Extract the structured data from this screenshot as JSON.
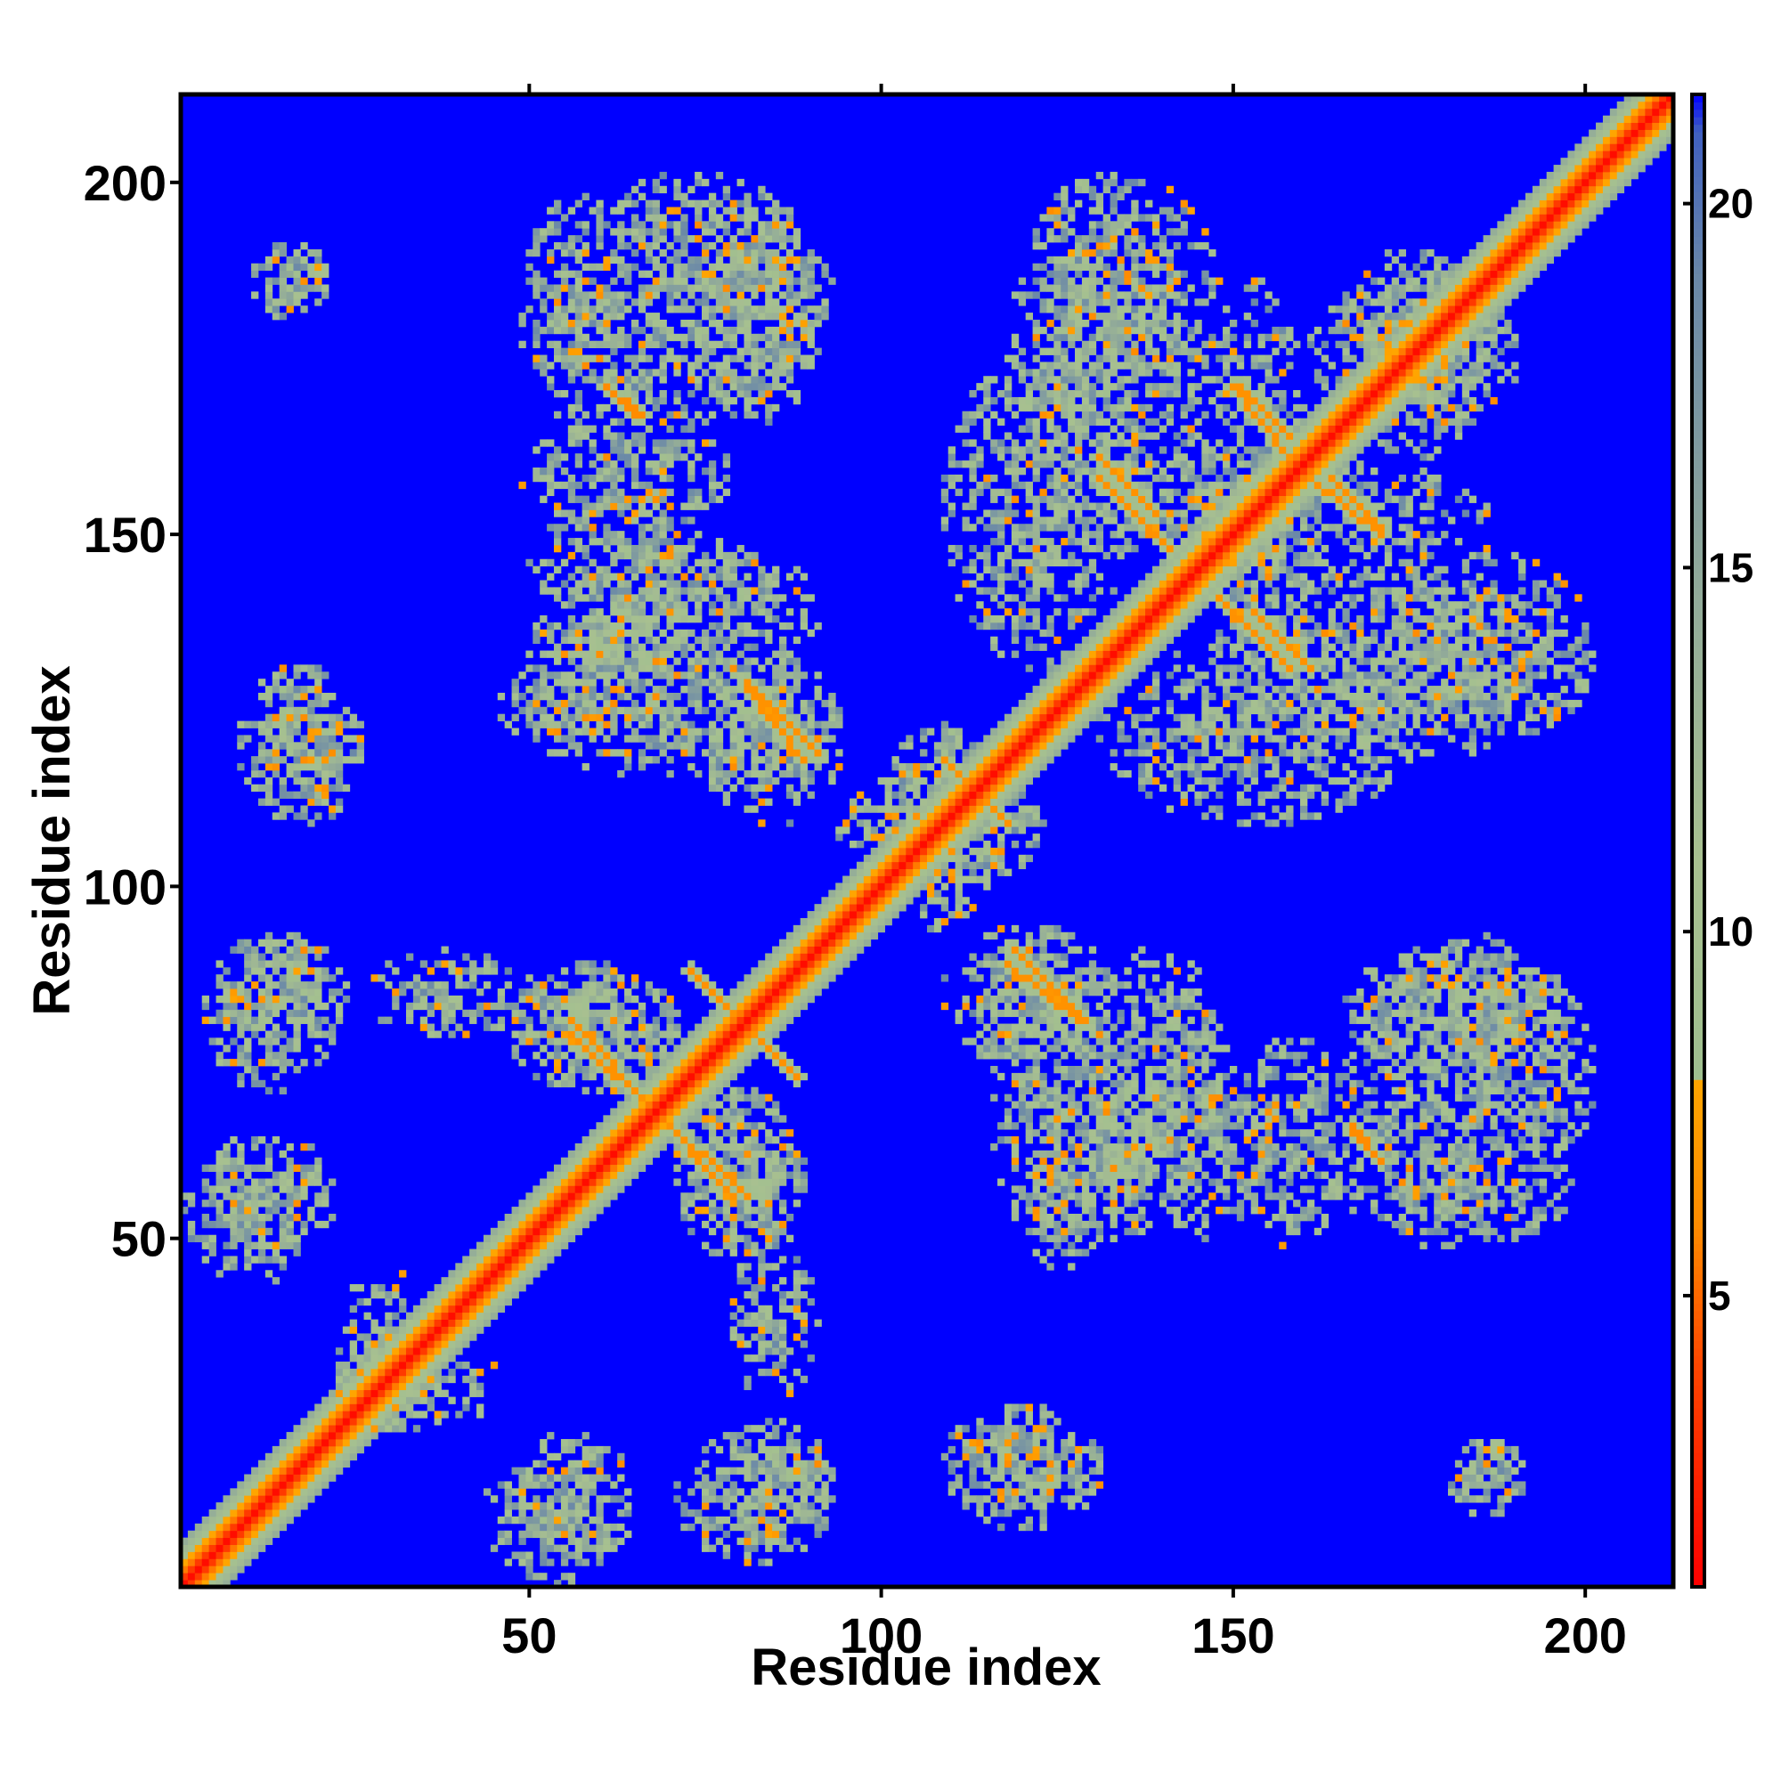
{
  "chart_data": {
    "type": "heatmap",
    "title": "",
    "xlabel": "Residue index",
    "ylabel": "Residue index",
    "xlim": [
      1,
      212
    ],
    "ylim": [
      1,
      212
    ],
    "xticks": [
      "50",
      "100",
      "150",
      "200"
    ],
    "yticks": [
      "50",
      "100",
      "150",
      "200"
    ],
    "colorbar": {
      "range": [
        1,
        21.5
      ],
      "ticks": [
        "5",
        "10",
        "15",
        "20"
      ],
      "stops": [
        {
          "value": 1,
          "color": "#ff0000"
        },
        {
          "value": 4,
          "color": "#ff4500"
        },
        {
          "value": 6,
          "color": "#ff8c00"
        },
        {
          "value": 8,
          "color": "#ffa500"
        },
        {
          "value": 8.01,
          "color": "#9fbf8f"
        },
        {
          "value": 11,
          "color": "#a8c090"
        },
        {
          "value": 15,
          "color": "#8fa89a"
        },
        {
          "value": 19,
          "color": "#6a88a8"
        },
        {
          "value": 21,
          "color": "#4060c0"
        },
        {
          "value": 21.5,
          "color": "#0000ff"
        }
      ]
    },
    "background_value": 21.5,
    "diagonal_band": [
      {
        "offset": 0,
        "value": 1.5
      },
      {
        "offset": 1,
        "value": 3.5
      },
      {
        "offset": 2,
        "value": 5.5
      },
      {
        "offset": 3,
        "value": 8
      },
      {
        "offset": 4,
        "value": 10
      },
      {
        "offset": 5,
        "value": 12
      },
      {
        "offset": 6,
        "value": 14
      }
    ],
    "contact_regions": [
      {
        "x": [
          3,
          22
        ],
        "y": [
          48,
          63
        ]
      },
      {
        "x": [
          4,
          23
        ],
        "y": [
          77,
          92
        ]
      },
      {
        "x": [
          10,
          25
        ],
        "y": [
          108,
          130
        ]
      },
      {
        "x": [
          10,
          20
        ],
        "y": [
          183,
          190
        ]
      },
      {
        "x": [
          22,
          35
        ],
        "y": [
          20,
          45
        ]
      },
      {
        "x": [
          43,
          63
        ],
        "y": [
          0,
          20
        ]
      },
      {
        "x": [
          70,
          92
        ],
        "y": [
          3,
          22
        ]
      },
      {
        "x": [
          108,
          130
        ],
        "y": [
          8,
          25
        ]
      },
      {
        "x": [
          180,
          190
        ],
        "y": [
          10,
          20
        ]
      },
      {
        "x": [
          45,
          70
        ],
        "y": [
          70,
          88
        ]
      },
      {
        "x": [
          48,
          68
        ],
        "y": [
          118,
          140
        ]
      },
      {
        "x": [
          53,
          90
        ],
        "y": [
          128,
          148
        ]
      },
      {
        "x": [
          48,
          65
        ],
        "y": [
          165,
          197
        ]
      },
      {
        "x": [
          73,
          90
        ],
        "y": [
          165,
          197
        ]
      },
      {
        "x": [
          70,
          88
        ],
        "y": [
          48,
          70
        ]
      },
      {
        "x": [
          73,
          93
        ],
        "y": [
          108,
          130
        ]
      },
      {
        "x": [
          78,
          90
        ],
        "y": [
          25,
          48
        ]
      },
      {
        "x": [
          115,
          135
        ],
        "y": [
          45,
          93
        ]
      },
      {
        "x": [
          130,
          155
        ],
        "y": [
          48,
          75
        ]
      },
      {
        "x": [
          150,
          165
        ],
        "y": [
          48,
          78
        ]
      },
      {
        "x": [
          165,
          200
        ],
        "y": [
          53,
          92
        ]
      },
      {
        "x": [
          108,
          135
        ],
        "y": [
          130,
          175
        ]
      },
      {
        "x": [
          120,
          140
        ],
        "y": [
          170,
          200
        ]
      },
      {
        "x": [
          145,
          160
        ],
        "y": [
          120,
          185
        ]
      },
      {
        "x": [
          160,
          190
        ],
        "y": [
          165,
          185
        ]
      },
      {
        "x": [
          155,
          200
        ],
        "y": [
          118,
          148
        ]
      },
      {
        "x": [
          98,
          115
        ],
        "y": [
          93,
          122
        ]
      }
    ],
    "contact_streaks": [
      {
        "from": [
          55,
          80
        ],
        "to": [
          78,
          55
        ],
        "value": 6.5
      },
      {
        "from": [
          72,
          87
        ],
        "to": [
          87,
          72
        ],
        "value": 6.5
      },
      {
        "from": [
          80,
          127
        ],
        "to": [
          88,
          117
        ],
        "value": 6.5
      },
      {
        "from": [
          118,
          90
        ],
        "to": [
          128,
          80
        ],
        "value": 6.5
      },
      {
        "from": [
          130,
          157
        ],
        "to": [
          140,
          147
        ],
        "value": 6.5
      },
      {
        "from": [
          150,
          170
        ],
        "to": [
          157,
          163
        ],
        "value": 6.5
      },
      {
        "from": [
          160,
          157
        ],
        "to": [
          170,
          149
        ],
        "value": 6.5
      },
      {
        "from": [
          152,
          138
        ],
        "to": [
          160,
          130
        ],
        "value": 6.5
      },
      {
        "from": [
          60,
          170
        ],
        "to": [
          65,
          166
        ],
        "value": 6
      },
      {
        "from": [
          166,
          64
        ],
        "to": [
          170,
          60
        ],
        "value": 6
      },
      {
        "from": [
          110,
          115
        ],
        "to": [
          117,
          108
        ],
        "value": 6.5
      }
    ]
  }
}
